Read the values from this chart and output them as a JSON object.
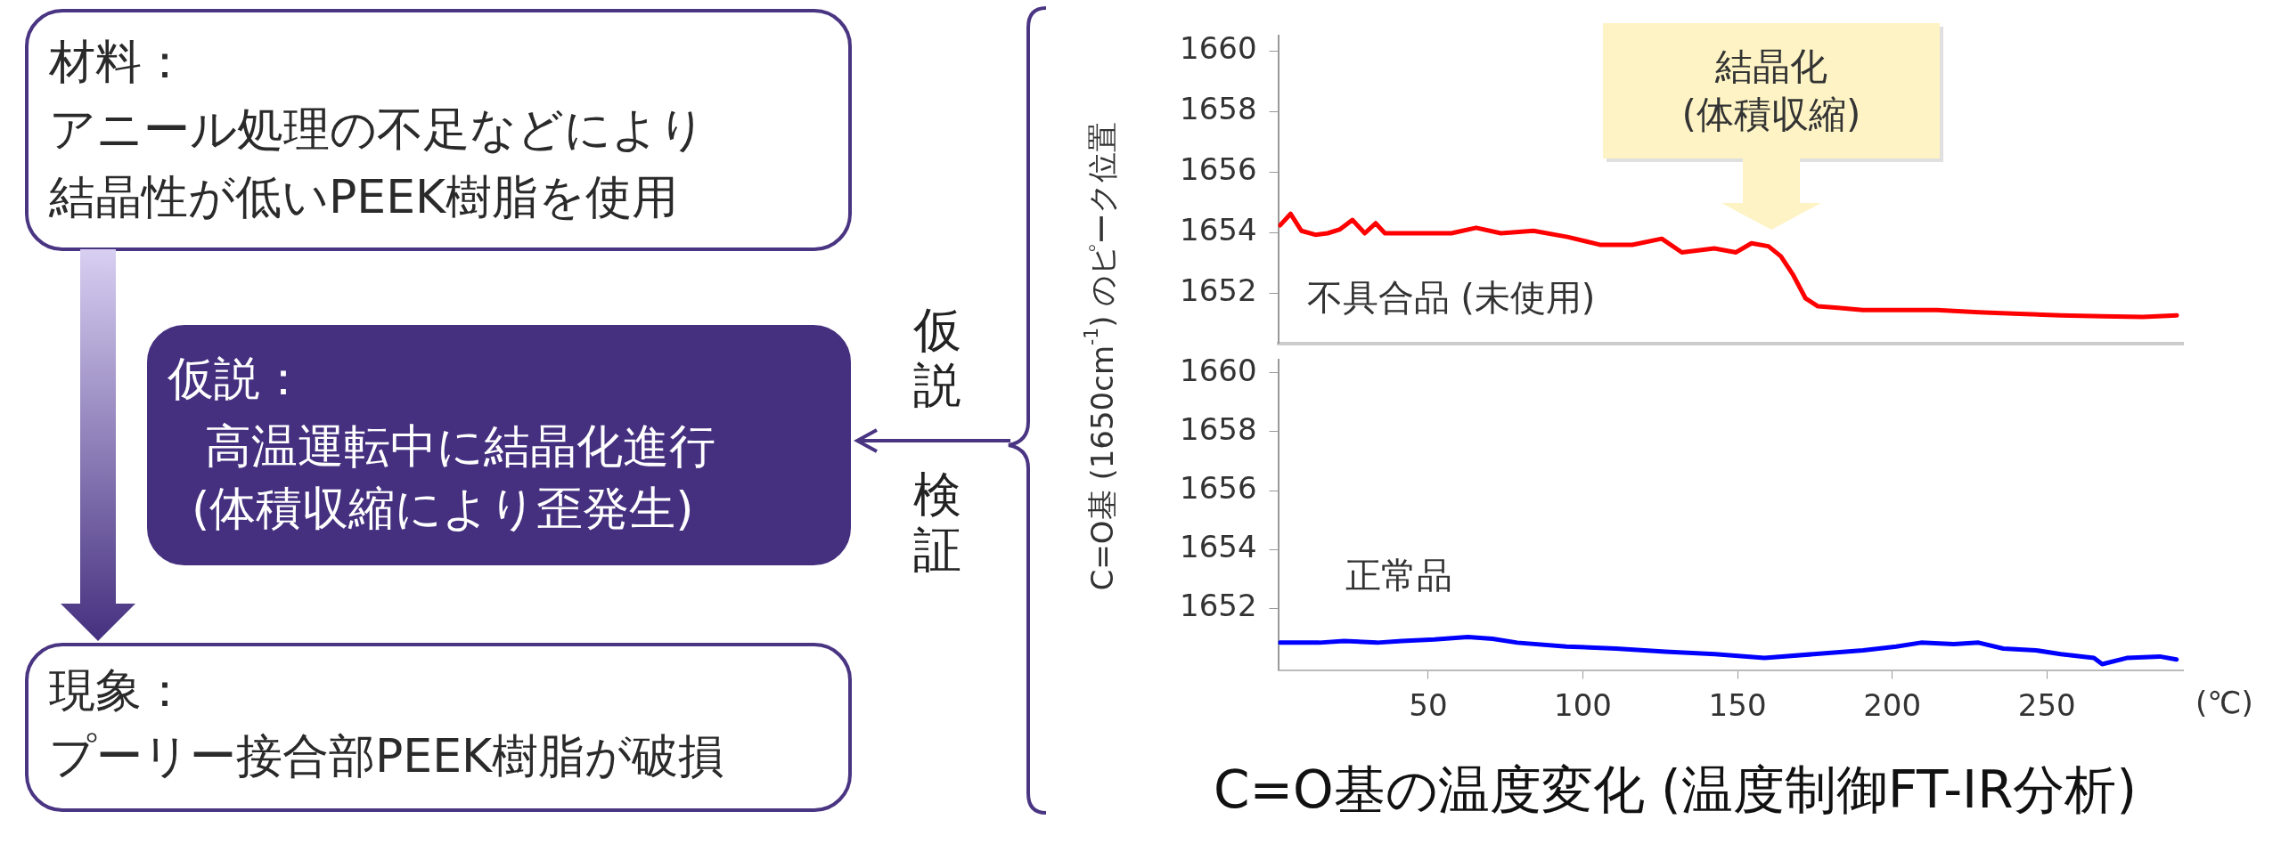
{
  "chart_data": [
    {
      "type": "other",
      "annotations": [
        "材料：",
        "アニール処理の不足などにより",
        "結晶性が低いPEEK樹脂を使用",
        "仮説：",
        "高温運転中に結晶化進行",
        "(体積収縮により歪発生)",
        "現象：",
        "プーリー接合部PEEK樹脂が破損",
        "仮説",
        "検証"
      ]
    },
    {
      "type": "line",
      "tick_labels": "y",
      "xlim": [
        1.5,
        294
      ],
      "ylim": [
        1650.35,
        1660.5
      ],
      "yticks": [
        1652,
        1654,
        1656,
        1658,
        1660
      ],
      "grid": false,
      "legend": false,
      "marker": "none",
      "line_style": "solid",
      "annotations": [
        "結晶化(体積収縮)"
      ],
      "series": [
        {
          "name": "不具合品 (未使用)",
          "color": "#ff0000",
          "x": [
            2.1,
            5.5,
            9,
            13.5,
            17.5,
            21.5,
            25.5,
            29.5,
            33,
            36,
            47,
            57.5,
            65.5,
            73.5,
            84,
            95,
            105.5,
            116,
            125.5,
            132,
            142.5,
            149.5,
            154.5,
            160,
            164,
            168,
            172,
            176,
            182.5,
            190.5,
            201,
            214.5,
            228,
            241,
            254.5,
            268,
            281,
            292
          ],
          "values": [
            1654.24,
            1654.62,
            1654.06,
            1653.93,
            1653.98,
            1654.11,
            1654.42,
            1653.98,
            1654.31,
            1653.98,
            1653.98,
            1653.98,
            1654.16,
            1653.98,
            1654.06,
            1653.86,
            1653.6,
            1653.6,
            1653.8,
            1653.35,
            1653.48,
            1653.35,
            1653.65,
            1653.55,
            1653.22,
            1652.6,
            1651.83,
            1651.57,
            1651.52,
            1651.45,
            1651.45,
            1651.45,
            1651.37,
            1651.32,
            1651.27,
            1651.24,
            1651.22,
            1651.27
          ]
        }
      ]
    },
    {
      "type": "line",
      "title": "C=O基の温度変化 (温度制御FT-IR分析)",
      "xlabel": "(℃)",
      "ylabel": "C=O基 (1650cm$^{-1}$) のピーク位置",
      "xlim": [
        1.5,
        294
      ],
      "xticks": [
        50,
        100,
        150,
        200,
        250
      ],
      "ylim": [
        1649.9,
        1660.45
      ],
      "yticks": [
        1652,
        1654,
        1656,
        1658,
        1660
      ],
      "grid": false,
      "legend": false,
      "marker": "none",
      "line_style": "solid",
      "series": [
        {
          "name": "正常品",
          "color": "#0000ff",
          "x": [
            2.1,
            14.8,
            22.8,
            33.5,
            41.5,
            52,
            62.8,
            70.8,
            78.8,
            94.7,
            110.7,
            126.7,
            142.7,
            158.7,
            174.6,
            190.6,
            201.3,
            209.3,
            219.9,
            227.9,
            235.9,
            246.5,
            254.5,
            265.2,
            267.9,
            275.8,
            286.5,
            291.9
          ],
          "values": [
            1650.83,
            1650.83,
            1650.89,
            1650.83,
            1650.89,
            1650.94,
            1651.02,
            1650.96,
            1650.83,
            1650.7,
            1650.63,
            1650.52,
            1650.44,
            1650.31,
            1650.44,
            1650.57,
            1650.7,
            1650.83,
            1650.78,
            1650.83,
            1650.63,
            1650.57,
            1650.44,
            1650.31,
            1650.1,
            1650.31,
            1650.36,
            1650.26
          ]
        }
      ]
    }
  ]
}
